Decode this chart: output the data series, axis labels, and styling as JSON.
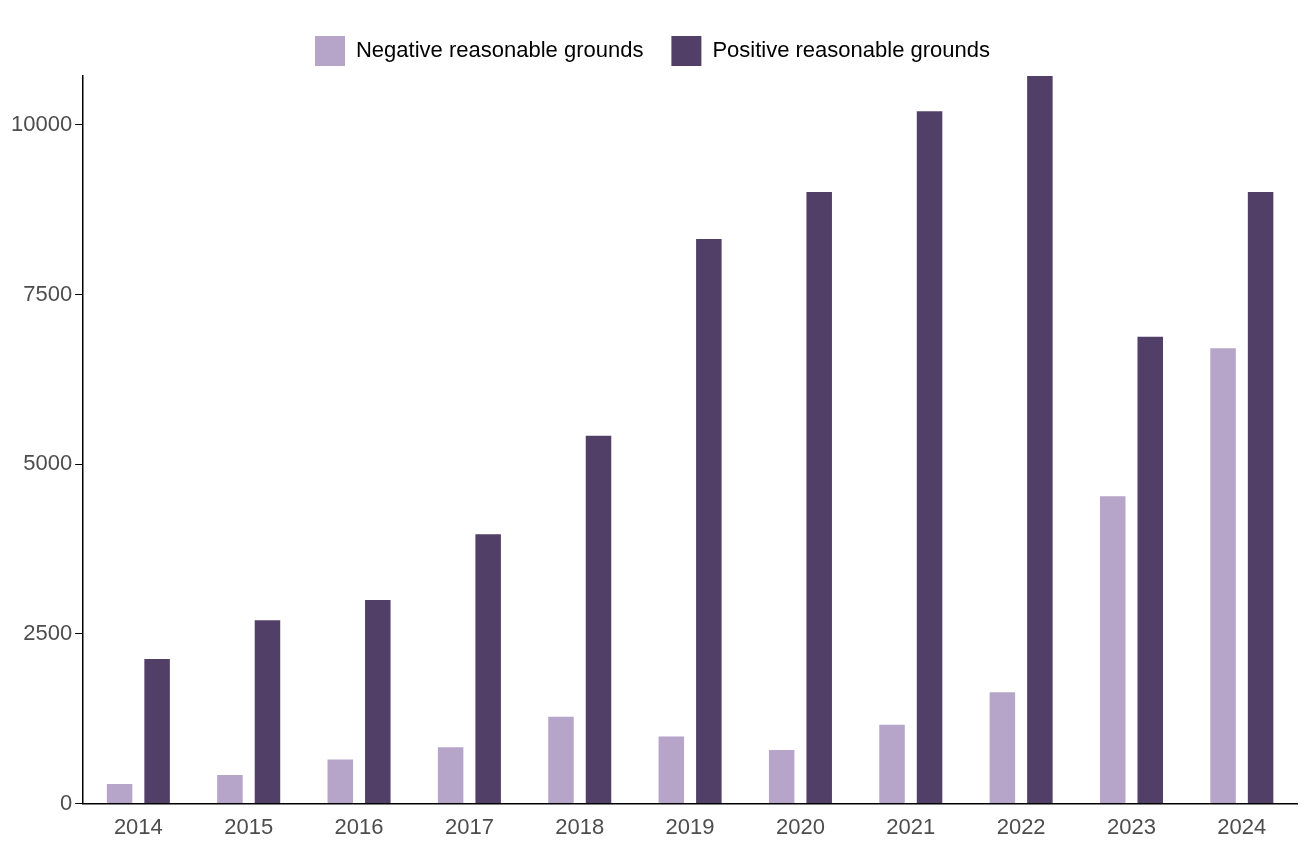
{
  "chart_data": {
    "type": "bar",
    "categories": [
      "2014",
      "2015",
      "2016",
      "2017",
      "2018",
      "2019",
      "2020",
      "2021",
      "2022",
      "2023",
      "2024"
    ],
    "series": [
      {
        "name": "Negative reasonable grounds",
        "color": "#b6a5c9",
        "values": [
          290,
          420,
          650,
          830,
          1280,
          990,
          790,
          1160,
          1640,
          4530,
          6710
        ]
      },
      {
        "name": "Positive reasonable grounds",
        "color": "#513f67",
        "values": [
          2130,
          2700,
          3000,
          3970,
          5420,
          8320,
          9010,
          10200,
          10720,
          6880,
          9010
        ]
      }
    ],
    "ylim": [
      0,
      10720
    ],
    "yticks": [
      0,
      2500,
      5000,
      7500,
      10000
    ],
    "grid": false,
    "legend": "top"
  }
}
